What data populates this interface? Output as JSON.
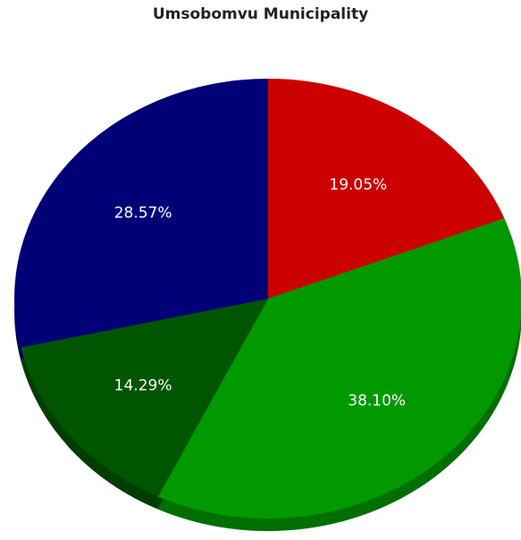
{
  "chart_data": {
    "type": "pie",
    "title": "Umsobomvu Municipality",
    "slices": [
      {
        "value": 19.05,
        "label": "19.05%",
        "color": "#cc0000"
      },
      {
        "value": 38.1,
        "label": "38.10%",
        "color": "#009900"
      },
      {
        "value": 14.29,
        "label": "14.29%",
        "color": "#005500"
      },
      {
        "value": 28.57,
        "label": "28.57%",
        "color": "#000077"
      }
    ],
    "start_angle": "12 o'clock",
    "direction": "clockwise",
    "style": "3d"
  }
}
